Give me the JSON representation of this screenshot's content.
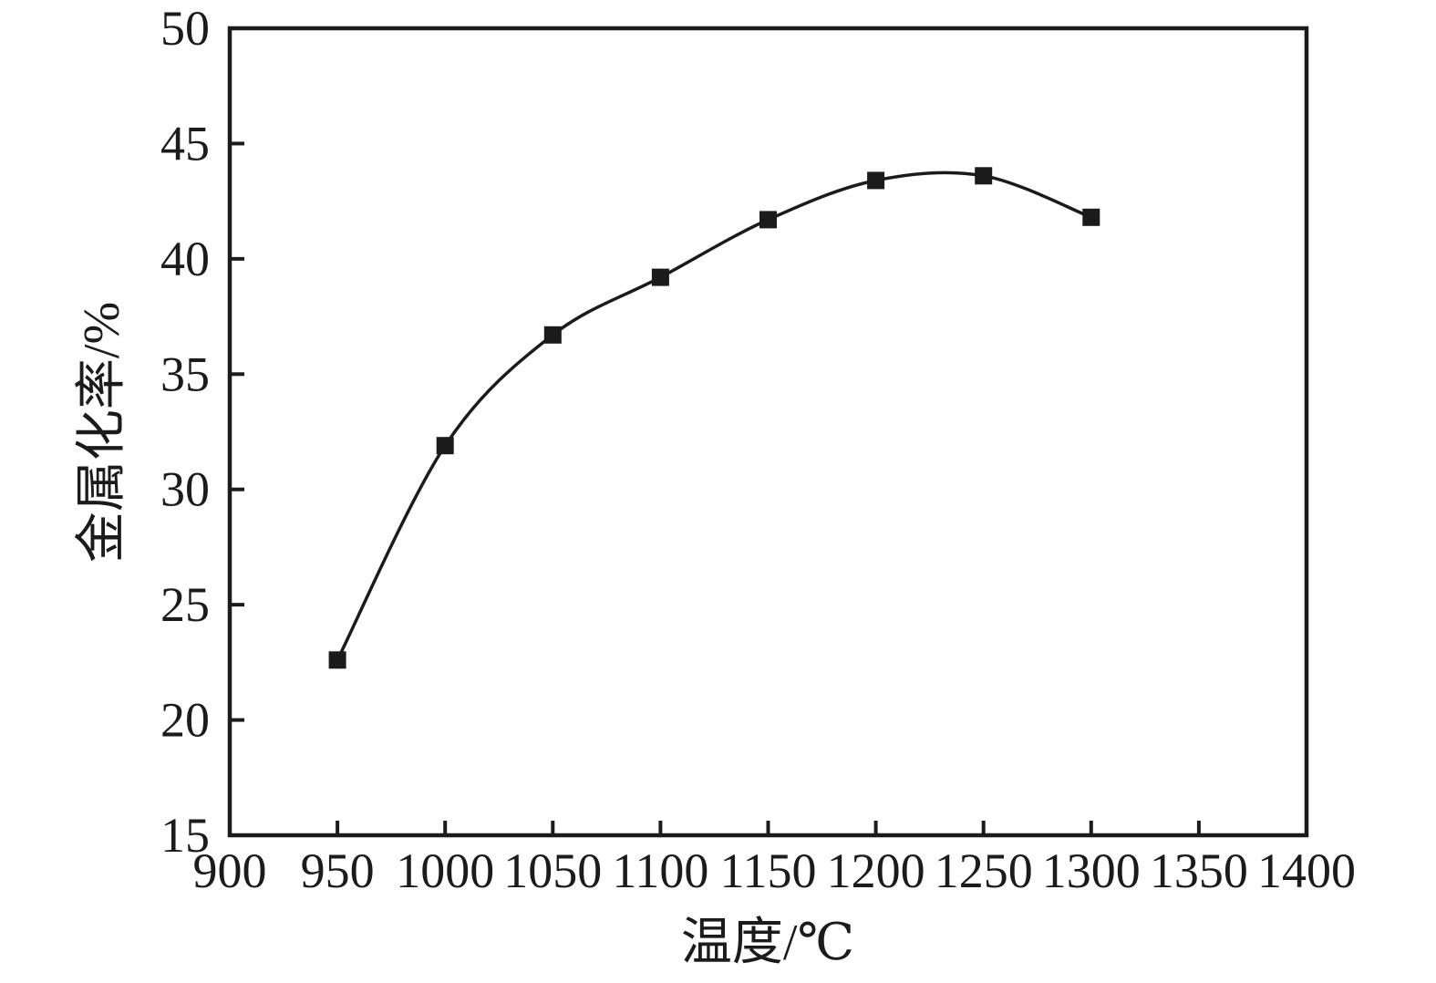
{
  "figure": {
    "background": "#ffffff",
    "ink_color": "#1b1b1b"
  },
  "chart_data": {
    "type": "line",
    "title": "",
    "xlabel": "温度/℃",
    "ylabel": "金属化率/%",
    "x": [
      950,
      1000,
      1050,
      1100,
      1150,
      1200,
      1250,
      1300
    ],
    "series": [
      {
        "name": "金属化率",
        "values": [
          22.6,
          31.9,
          36.7,
          39.2,
          41.7,
          43.4,
          43.6,
          41.8
        ],
        "marker": "square",
        "color": "#1b1b1b",
        "curve": "smooth"
      }
    ],
    "xlim": [
      900,
      1400
    ],
    "ylim": [
      15,
      50
    ],
    "x_ticks": [
      "900",
      "950",
      "1000",
      "1050",
      "1100",
      "1150",
      "1200",
      "1250",
      "1300",
      "1350",
      "1400"
    ],
    "y_ticks": [
      "15",
      "20",
      "25",
      "30",
      "35",
      "40",
      "45",
      "50"
    ],
    "grid": false,
    "legend": "none",
    "frame": "box",
    "tick_direction": "in"
  }
}
